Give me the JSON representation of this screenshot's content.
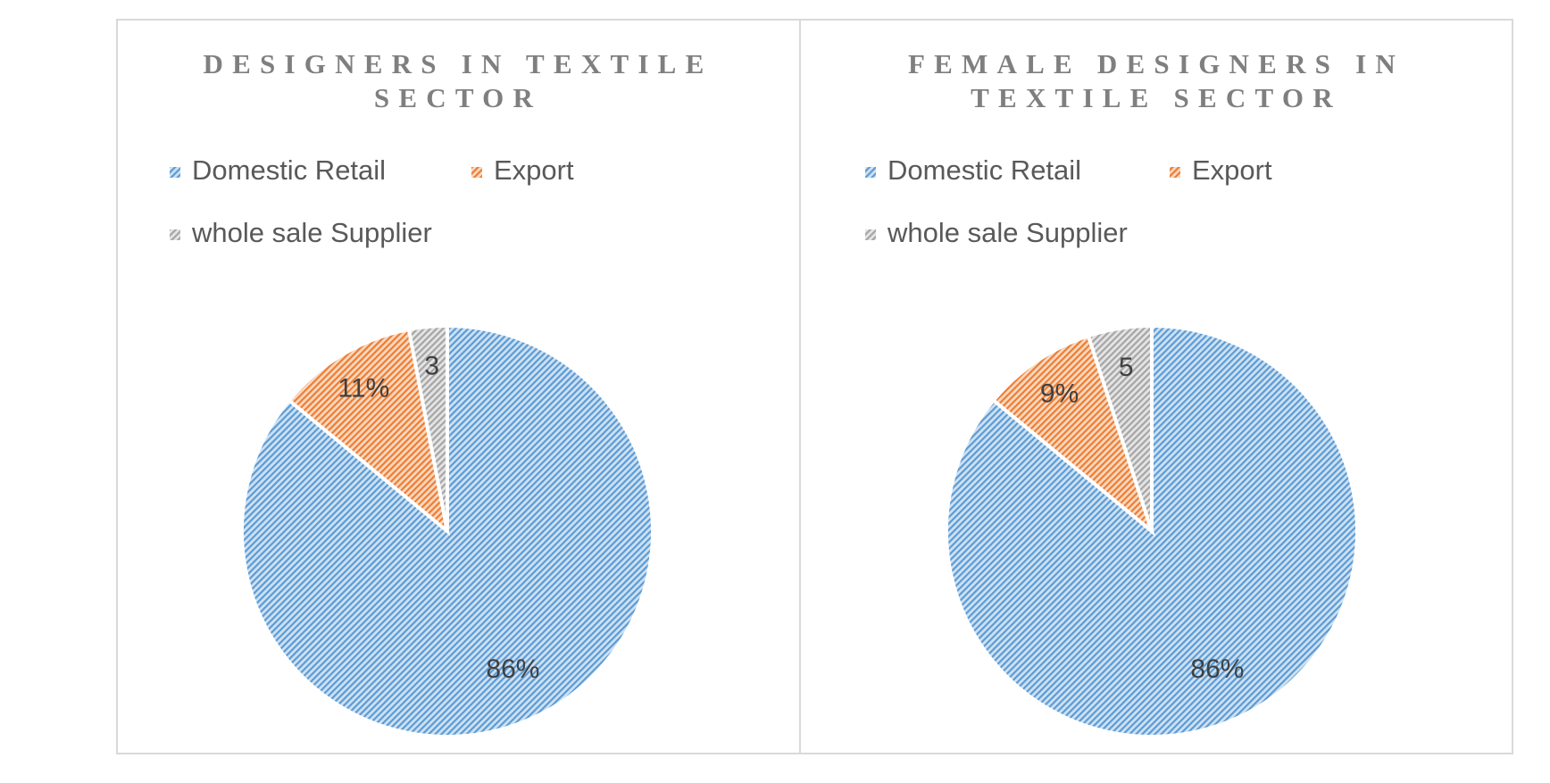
{
  "chart_data": [
    {
      "type": "pie",
      "title": "DESIGNERS IN TEXTILE SECTOR",
      "categories": [
        "Domestic Retail",
        "Export",
        "whole sale Supplier"
      ],
      "values": [
        86,
        11,
        3
      ],
      "value_labels": [
        "86%",
        "11%",
        "3"
      ],
      "colors": [
        "#5b9bd5",
        "#ed7d31",
        "#a5a5a5"
      ],
      "legend": "top"
    },
    {
      "type": "pie",
      "title": "FEMALE DESIGNERS IN TEXTILE SECTOR",
      "categories": [
        "Domestic Retail",
        "Export",
        "whole sale Supplier"
      ],
      "values": [
        86,
        9,
        5
      ],
      "value_labels": [
        "86%",
        "9%",
        "5"
      ],
      "colors": [
        "#5b9bd5",
        "#ed7d31",
        "#a5a5a5"
      ],
      "legend": "top"
    }
  ]
}
